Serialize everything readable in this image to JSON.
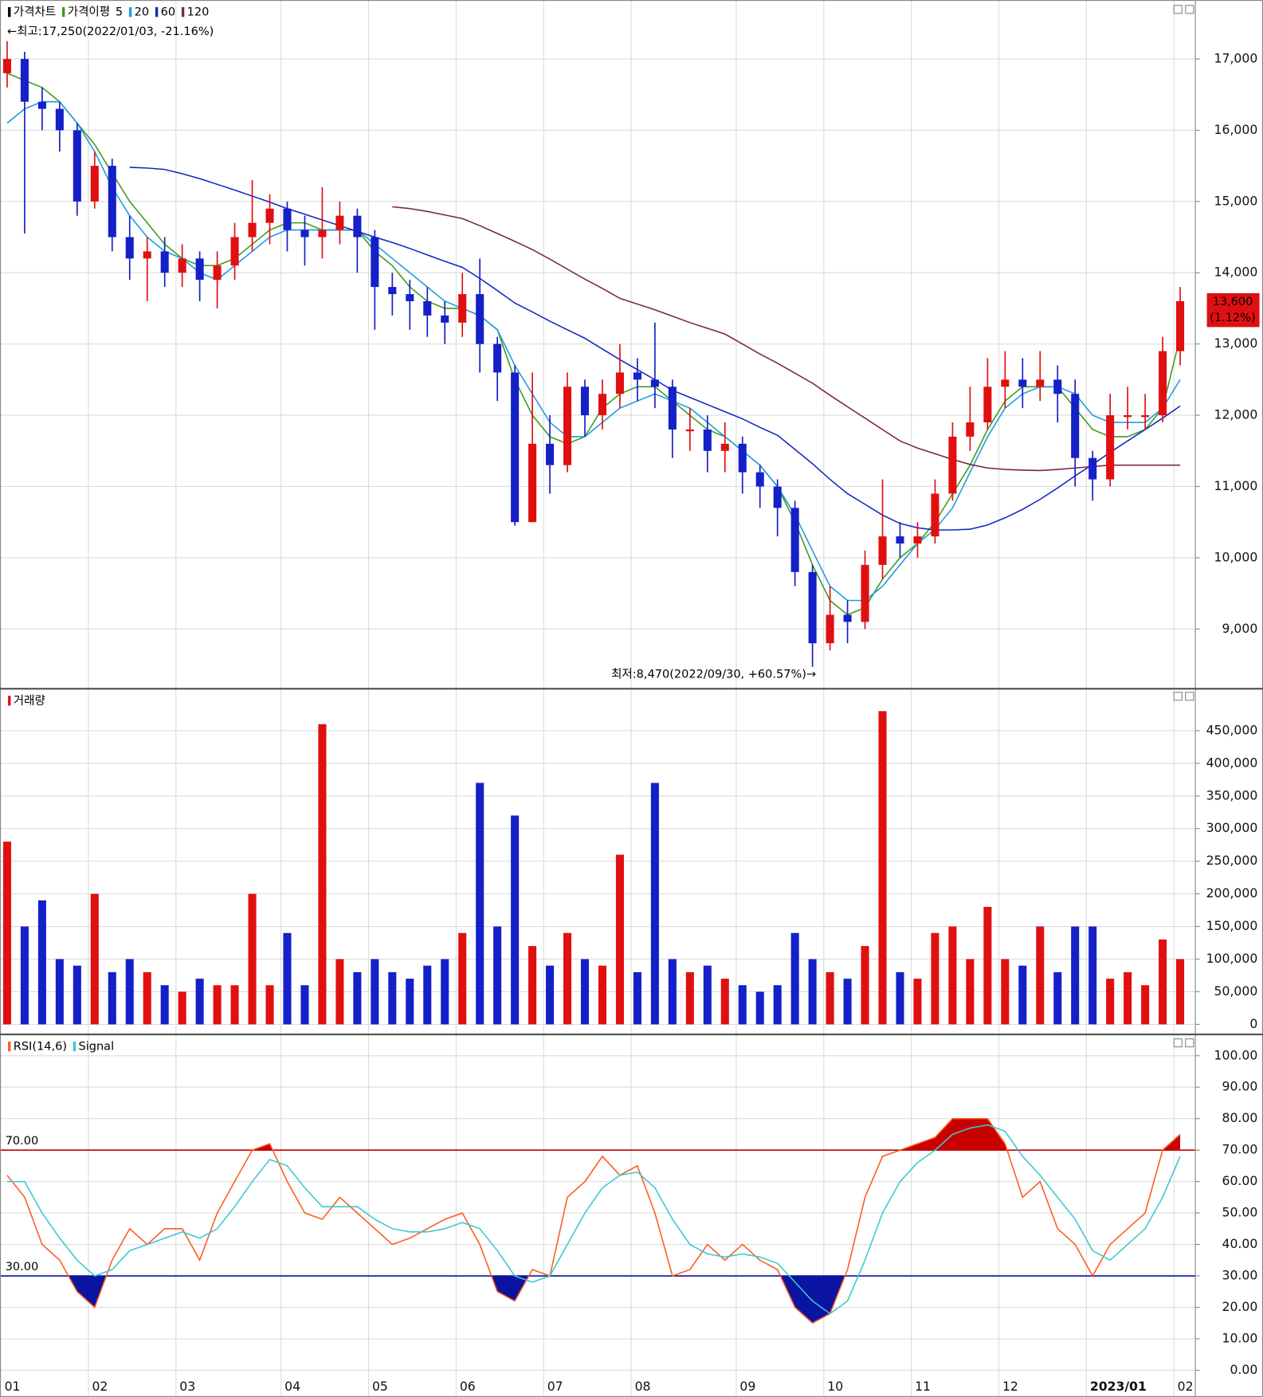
{
  "chart_data": [
    {
      "type": "candlestick",
      "title": "가격차트",
      "title_color": "#000000",
      "up_color": "#e01010",
      "down_color": "#1420c8",
      "open": [
        16800,
        17000,
        16400,
        16300,
        16000,
        15000,
        15500,
        14500,
        14200,
        14300,
        14000,
        14200,
        13900,
        14100,
        14500,
        14700,
        14900,
        14600,
        14500,
        14600,
        14800,
        14500,
        13800,
        13700,
        13600,
        13400,
        13300,
        13700,
        13000,
        12600,
        10500,
        11600,
        11300,
        12400,
        12000,
        12300,
        12600,
        12500,
        12400,
        11800,
        11800,
        11500,
        11600,
        11200,
        11000,
        10700,
        9800,
        8800,
        9200,
        9100,
        9900,
        10300,
        10200,
        10300,
        10900,
        11700,
        11900,
        12400,
        12500,
        12400,
        12500,
        12300,
        11400,
        11100,
        12000,
        12000,
        12000,
        12900
      ],
      "high": [
        17250,
        17100,
        16600,
        16400,
        16100,
        15700,
        15600,
        14800,
        14500,
        14500,
        14400,
        14300,
        14300,
        14700,
        15300,
        15100,
        15000,
        14800,
        15200,
        15000,
        14900,
        14600,
        14000,
        13900,
        13800,
        13600,
        14000,
        14200,
        13100,
        12700,
        12600,
        12000,
        12600,
        12500,
        12500,
        13000,
        12800,
        13300,
        12500,
        12100,
        12000,
        11900,
        11700,
        11300,
        11100,
        10800,
        9900,
        9600,
        9400,
        10100,
        11100,
        10500,
        10500,
        11100,
        11900,
        12400,
        12800,
        12900,
        12800,
        12900,
        12700,
        12500,
        11500,
        12300,
        12400,
        12300,
        13100,
        13800
      ],
      "low": [
        16600,
        14550,
        16000,
        15700,
        14800,
        14900,
        14300,
        13900,
        13600,
        13800,
        13800,
        13600,
        13500,
        13900,
        14300,
        14400,
        14300,
        14100,
        14200,
        14400,
        14000,
        13200,
        13400,
        13200,
        13100,
        13000,
        13100,
        12600,
        12200,
        10450,
        10500,
        10900,
        11200,
        11700,
        11800,
        12100,
        12200,
        12100,
        11400,
        11500,
        11200,
        11200,
        10900,
        10700,
        10300,
        9600,
        8470,
        8700,
        8800,
        9000,
        9700,
        10000,
        10000,
        10200,
        10800,
        11500,
        11800,
        12100,
        12100,
        12200,
        11900,
        11000,
        10800,
        11000,
        11800,
        11800,
        11900,
        12700
      ],
      "close": [
        17000,
        16400,
        16300,
        16000,
        15000,
        15500,
        14500,
        14200,
        14300,
        14000,
        14200,
        13900,
        14100,
        14500,
        14700,
        14900,
        14600,
        14500,
        14600,
        14800,
        14500,
        13800,
        13700,
        13600,
        13400,
        13300,
        13700,
        13000,
        12600,
        10500,
        11600,
        11300,
        12400,
        12000,
        12300,
        12600,
        12500,
        12400,
        11800,
        11800,
        11500,
        11600,
        11200,
        11000,
        10700,
        9800,
        8800,
        9200,
        9100,
        9900,
        10300,
        10200,
        10300,
        10900,
        11700,
        11900,
        12400,
        12500,
        12400,
        12500,
        12300,
        11400,
        11100,
        12000,
        12000,
        12000,
        12900,
        13600
      ],
      "series_label": "가격이평",
      "series_label_color": "#3c9a1e",
      "series": [
        {
          "name": "5",
          "color": "#3c9a1e",
          "values": [
            16800,
            16700,
            16600,
            16400,
            16100,
            15800,
            15400,
            15000,
            14700,
            14400,
            14200,
            14100,
            14100,
            14200,
            14400,
            14600,
            14700,
            14700,
            14600,
            14600,
            14600,
            14300,
            14100,
            13800,
            13600,
            13500,
            13500,
            13400,
            13200,
            12500,
            12000,
            11700,
            11600,
            11700,
            12100,
            12300,
            12400,
            12400,
            12200,
            12000,
            11800,
            11700,
            11500,
            11300,
            11000,
            10500,
            9900,
            9400,
            9200,
            9300,
            9700,
            10000,
            10200,
            10500,
            10900,
            11300,
            11800,
            12200,
            12400,
            12400,
            12400,
            12100,
            11800,
            11700,
            11700,
            11800,
            12100,
            13100
          ]
        },
        {
          "name": "20",
          "color": "#1e9be0",
          "values": [
            16100,
            16300,
            16400,
            16400,
            16100,
            15700,
            15200,
            14800,
            14500,
            14300,
            14200,
            14000,
            13900,
            14100,
            14300,
            14500,
            14600,
            14600,
            14600,
            14600,
            14600,
            14400,
            14200,
            14000,
            13800,
            13600,
            13500,
            13400,
            13200,
            12700,
            12300,
            11900,
            11700,
            11700,
            11900,
            12100,
            12200,
            12300,
            12200,
            12100,
            11900,
            11700,
            11500,
            11300,
            11000,
            10600,
            10100,
            9600,
            9400,
            9400,
            9600,
            9900,
            10200,
            10400,
            10700,
            11200,
            11700,
            12100,
            12300,
            12400,
            12400,
            12300,
            12000,
            11900,
            11900,
            11900,
            12100,
            12500
          ]
        },
        {
          "name": "60",
          "color": "#1428c0",
          "values": [
            null,
            null,
            null,
            null,
            null,
            null,
            null,
            15480,
            15470,
            15450,
            15390,
            15320,
            15240,
            15160,
            15075,
            14990,
            14900,
            14820,
            14740,
            14660,
            14580,
            14500,
            14425,
            14340,
            14250,
            14160,
            14075,
            13920,
            13750,
            13575,
            13450,
            13320,
            13200,
            13080,
            12930,
            12780,
            12640,
            12500,
            12350,
            12250,
            12150,
            12050,
            11950,
            11830,
            11720,
            11520,
            11320,
            11100,
            10900,
            10750,
            10600,
            10480,
            10420,
            10390,
            10390,
            10400,
            10460,
            10560,
            10680,
            10820,
            10980,
            11150,
            11310,
            11480,
            11640,
            11800,
            11960,
            12130
          ]
        },
        {
          "name": "120",
          "color": "#7a2840",
          "values": [
            null,
            null,
            null,
            null,
            null,
            null,
            null,
            null,
            null,
            null,
            null,
            null,
            null,
            null,
            null,
            null,
            null,
            null,
            null,
            null,
            null,
            null,
            14925,
            14900,
            14860,
            14810,
            14760,
            14660,
            14550,
            14440,
            14325,
            14190,
            14050,
            13910,
            13780,
            13640,
            13560,
            13480,
            13390,
            13300,
            13220,
            13140,
            13000,
            12860,
            12730,
            12590,
            12450,
            12280,
            12120,
            11960,
            11800,
            11640,
            11540,
            11460,
            11380,
            11310,
            11260,
            11240,
            11230,
            11225,
            11240,
            11260,
            11280,
            11300,
            11300,
            11300,
            11300,
            11300
          ]
        }
      ],
      "annotations": [
        {
          "text": "←최고:17,250(2022/01/03, -21.16%)",
          "color": "#e01010",
          "index": 0,
          "anchor": "start",
          "position": "top"
        },
        {
          "text": "최저:8,470(2022/09/30, +60.57%)→",
          "color": "#1420c8",
          "index": 46,
          "anchor": "end",
          "position": "bottom"
        }
      ],
      "last_price": {
        "value": 13600,
        "label": "13,600"
      },
      "last_change": {
        "value": 1.12,
        "label": "(1.12%)"
      },
      "ylim": [
        8175,
        17790
      ],
      "yticks": [
        {
          "value": 9000,
          "label": "9,000"
        },
        {
          "value": 10000,
          "label": "10,000"
        },
        {
          "value": 11000,
          "label": "11,000"
        },
        {
          "value": 12000,
          "label": "12,000"
        },
        {
          "value": 13000,
          "label": "13,000"
        },
        {
          "value": 14000,
          "label": "14,000"
        },
        {
          "value": 15000,
          "label": "15,000"
        },
        {
          "value": 16000,
          "label": "16,000"
        },
        {
          "value": 17000,
          "label": "17,000"
        }
      ],
      "grid": true
    },
    {
      "type": "bar",
      "title": "거래량",
      "title_color": "#e01010",
      "values": [
        280000,
        150000,
        190000,
        100000,
        90000,
        200000,
        80000,
        100000,
        80000,
        60000,
        50000,
        70000,
        60000,
        60000,
        200000,
        60000,
        140000,
        60000,
        460000,
        100000,
        80000,
        100000,
        80000,
        70000,
        90000,
        100000,
        140000,
        370000,
        150000,
        320000,
        120000,
        90000,
        140000,
        100000,
        90000,
        260000,
        80000,
        370000,
        100000,
        80000,
        90000,
        70000,
        60000,
        50000,
        60000,
        140000,
        100000,
        80000,
        70000,
        120000,
        480000,
        80000,
        70000,
        140000,
        150000,
        100000,
        180000,
        100000,
        90000,
        150000,
        80000,
        150000,
        150000,
        70000,
        80000,
        60000,
        130000,
        100000
      ],
      "ylim": [
        -14000,
        513000
      ],
      "yticks": [
        0,
        {
          "value": 50000,
          "label": "50,000"
        },
        {
          "value": 100000,
          "label": "100,000"
        },
        {
          "value": 150000,
          "label": "150,000"
        },
        {
          "value": 200000,
          "label": "200,000"
        },
        {
          "value": 250000,
          "label": "250,000"
        },
        {
          "value": 300000,
          "label": "300,000"
        },
        {
          "value": 350000,
          "label": "350,000"
        },
        {
          "value": 400000,
          "label": "400,000"
        },
        {
          "value": 450000,
          "label": "450,000"
        }
      ],
      "grid": true
    },
    {
      "type": "line",
      "categories": [
        "01",
        null,
        null,
        null,
        null,
        "02",
        null,
        null,
        null,
        null,
        "03",
        null,
        null,
        null,
        null,
        null,
        "04",
        null,
        null,
        null,
        null,
        "05",
        null,
        null,
        null,
        null,
        "06",
        null,
        null,
        null,
        null,
        "07",
        null,
        null,
        null,
        null,
        "08",
        null,
        null,
        null,
        null,
        null,
        "09",
        null,
        null,
        null,
        null,
        "10",
        null,
        null,
        null,
        null,
        "11",
        null,
        null,
        null,
        null,
        "12",
        null,
        null,
        null,
        null,
        "2023/01",
        null,
        null,
        null,
        null,
        "02"
      ],
      "series": [
        {
          "name": "RSI(14,6)",
          "color": "#ff5a1e",
          "values": [
            62,
            55,
            40,
            35,
            25,
            20,
            35,
            45,
            40,
            45,
            45,
            35,
            50,
            60,
            70,
            72,
            60,
            50,
            48,
            55,
            50,
            45,
            40,
            42,
            45,
            48,
            50,
            40,
            25,
            22,
            32,
            30,
            55,
            60,
            68,
            62,
            65,
            50,
            30,
            32,
            40,
            35,
            40,
            35,
            32,
            20,
            15,
            18,
            32,
            55,
            68,
            70,
            72,
            74,
            80,
            80,
            80,
            72,
            55,
            60,
            45,
            40,
            30,
            40,
            45,
            50,
            70,
            75
          ]
        },
        {
          "name": "Signal",
          "color": "#3cc8d2",
          "values": [
            60,
            60,
            50,
            42,
            35,
            30,
            32,
            38,
            40,
            42,
            44,
            42,
            45,
            52,
            60,
            67,
            65,
            58,
            52,
            52,
            52,
            48,
            45,
            44,
            44,
            45,
            47,
            45,
            38,
            30,
            28,
            30,
            40,
            50,
            58,
            62,
            63,
            58,
            48,
            40,
            37,
            36,
            37,
            36,
            34,
            28,
            22,
            18,
            22,
            35,
            50,
            60,
            66,
            70,
            75,
            77,
            78,
            76,
            68,
            62,
            55,
            48,
            38,
            35,
            40,
            45,
            55,
            68
          ]
        }
      ],
      "levels": [
        {
          "value": 70,
          "label": "70.00",
          "color": "#c80000"
        },
        {
          "value": 30,
          "label": "30.00",
          "color": "#0a14a0"
        }
      ],
      "ylim": [
        -8.5,
        106.5
      ],
      "yticks": [
        {
          "value": 0,
          "label": "0.00"
        },
        {
          "value": 10,
          "label": "10.00"
        },
        {
          "value": 20,
          "label": "20.00"
        },
        {
          "value": 30,
          "label": "30.00"
        },
        {
          "value": 40,
          "label": "40.00"
        },
        {
          "value": 50,
          "label": "50.00"
        },
        {
          "value": 60,
          "label": "60.00"
        },
        {
          "value": 70,
          "label": "70.00"
        },
        {
          "value": 80,
          "label": "80.00"
        },
        {
          "value": 90,
          "label": "90.00"
        },
        {
          "value": 100,
          "label": "100.00"
        }
      ],
      "grid": true
    }
  ]
}
